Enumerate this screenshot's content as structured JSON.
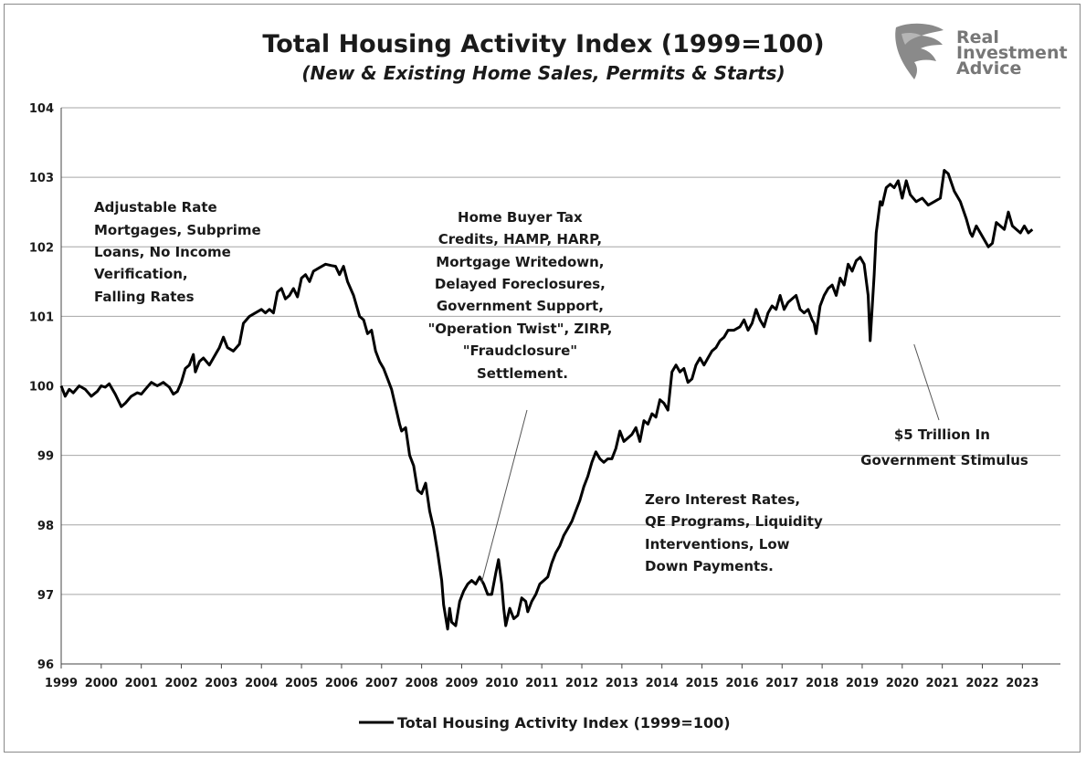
{
  "chart_data": {
    "type": "line",
    "title": "Total Housing Activity Index (1999=100)",
    "subtitle": "(New & Existing Home Sales, Permits & Starts)",
    "xlabel": "",
    "ylabel": "",
    "xlim": [
      1999,
      2023.95
    ],
    "ylim": [
      96,
      104
    ],
    "yticks": [
      "96",
      "97",
      "98",
      "99",
      "100",
      "101",
      "102",
      "103",
      "104"
    ],
    "xticks": [
      "1999",
      "2000",
      "2001",
      "2002",
      "2003",
      "2004",
      "2005",
      "2006",
      "2007",
      "2008",
      "2009",
      "2010",
      "2011",
      "2012",
      "2013",
      "2014",
      "2015",
      "2016",
      "2017",
      "2018",
      "2019",
      "2020",
      "2021",
      "2022",
      "2023"
    ],
    "grid": "horizontal",
    "legend_position": "bottom",
    "series": [
      {
        "name": "Total Housing Activity Index (1999=100)",
        "color": "#000000",
        "points": [
          [
            1999.0,
            100.0
          ],
          [
            1999.1,
            99.85
          ],
          [
            1999.2,
            99.95
          ],
          [
            1999.3,
            99.9
          ],
          [
            1999.45,
            100.0
          ],
          [
            1999.6,
            99.95
          ],
          [
            1999.75,
            99.85
          ],
          [
            1999.9,
            99.92
          ],
          [
            2000.0,
            100.0
          ],
          [
            2000.1,
            99.98
          ],
          [
            2000.2,
            100.03
          ],
          [
            2000.35,
            99.88
          ],
          [
            2000.5,
            99.7
          ],
          [
            2000.6,
            99.75
          ],
          [
            2000.75,
            99.85
          ],
          [
            2000.9,
            99.9
          ],
          [
            2001.0,
            99.88
          ],
          [
            2001.1,
            99.95
          ],
          [
            2001.25,
            100.05
          ],
          [
            2001.4,
            100.0
          ],
          [
            2001.55,
            100.05
          ],
          [
            2001.7,
            99.98
          ],
          [
            2001.8,
            99.88
          ],
          [
            2001.9,
            99.92
          ],
          [
            2002.0,
            100.05
          ],
          [
            2002.1,
            100.25
          ],
          [
            2002.2,
            100.3
          ],
          [
            2002.3,
            100.45
          ],
          [
            2002.35,
            100.2
          ],
          [
            2002.45,
            100.35
          ],
          [
            2002.55,
            100.4
          ],
          [
            2002.7,
            100.3
          ],
          [
            2002.85,
            100.45
          ],
          [
            2002.95,
            100.55
          ],
          [
            2003.05,
            100.7
          ],
          [
            2003.15,
            100.55
          ],
          [
            2003.3,
            100.5
          ],
          [
            2003.45,
            100.6
          ],
          [
            2003.55,
            100.9
          ],
          [
            2003.7,
            101.0
          ],
          [
            2003.85,
            101.05
          ],
          [
            2004.0,
            101.1
          ],
          [
            2004.1,
            101.05
          ],
          [
            2004.2,
            101.1
          ],
          [
            2004.3,
            101.05
          ],
          [
            2004.4,
            101.35
          ],
          [
            2004.5,
            101.4
          ],
          [
            2004.6,
            101.25
          ],
          [
            2004.7,
            101.3
          ],
          [
            2004.8,
            101.4
          ],
          [
            2004.9,
            101.28
          ],
          [
            2005.0,
            101.55
          ],
          [
            2005.1,
            101.6
          ],
          [
            2005.2,
            101.5
          ],
          [
            2005.3,
            101.65
          ],
          [
            2005.45,
            101.7
          ],
          [
            2005.6,
            101.75
          ],
          [
            2005.75,
            101.73
          ],
          [
            2005.85,
            101.72
          ],
          [
            2005.95,
            101.6
          ],
          [
            2006.05,
            101.72
          ],
          [
            2006.15,
            101.5
          ],
          [
            2006.3,
            101.3
          ],
          [
            2006.45,
            101.0
          ],
          [
            2006.55,
            100.95
          ],
          [
            2006.65,
            100.75
          ],
          [
            2006.75,
            100.8
          ],
          [
            2006.85,
            100.5
          ],
          [
            2006.95,
            100.35
          ],
          [
            2007.05,
            100.25
          ],
          [
            2007.15,
            100.1
          ],
          [
            2007.25,
            99.95
          ],
          [
            2007.35,
            99.7
          ],
          [
            2007.45,
            99.45
          ],
          [
            2007.5,
            99.35
          ],
          [
            2007.6,
            99.4
          ],
          [
            2007.7,
            99.0
          ],
          [
            2007.8,
            98.85
          ],
          [
            2007.9,
            98.5
          ],
          [
            2008.0,
            98.45
          ],
          [
            2008.1,
            98.6
          ],
          [
            2008.2,
            98.2
          ],
          [
            2008.3,
            97.95
          ],
          [
            2008.4,
            97.6
          ],
          [
            2008.5,
            97.2
          ],
          [
            2008.55,
            96.85
          ],
          [
            2008.65,
            96.5
          ],
          [
            2008.7,
            96.8
          ],
          [
            2008.75,
            96.6
          ],
          [
            2008.85,
            96.55
          ],
          [
            2008.95,
            96.9
          ],
          [
            2009.05,
            97.05
          ],
          [
            2009.15,
            97.15
          ],
          [
            2009.25,
            97.2
          ],
          [
            2009.35,
            97.15
          ],
          [
            2009.45,
            97.25
          ],
          [
            2009.55,
            97.15
          ],
          [
            2009.65,
            97.0
          ],
          [
            2009.75,
            97.0
          ],
          [
            2009.85,
            97.3
          ],
          [
            2009.92,
            97.5
          ],
          [
            2010.0,
            97.15
          ],
          [
            2010.05,
            96.8
          ],
          [
            2010.1,
            96.55
          ],
          [
            2010.2,
            96.8
          ],
          [
            2010.3,
            96.65
          ],
          [
            2010.4,
            96.7
          ],
          [
            2010.5,
            96.95
          ],
          [
            2010.6,
            96.9
          ],
          [
            2010.65,
            96.75
          ],
          [
            2010.75,
            96.9
          ],
          [
            2010.85,
            97.0
          ],
          [
            2010.95,
            97.15
          ],
          [
            2011.05,
            97.2
          ],
          [
            2011.15,
            97.25
          ],
          [
            2011.25,
            97.45
          ],
          [
            2011.35,
            97.6
          ],
          [
            2011.45,
            97.7
          ],
          [
            2011.55,
            97.85
          ],
          [
            2011.65,
            97.95
          ],
          [
            2011.75,
            98.05
          ],
          [
            2011.85,
            98.2
          ],
          [
            2011.95,
            98.35
          ],
          [
            2012.05,
            98.55
          ],
          [
            2012.15,
            98.7
          ],
          [
            2012.25,
            98.9
          ],
          [
            2012.35,
            99.05
          ],
          [
            2012.45,
            98.95
          ],
          [
            2012.55,
            98.9
          ],
          [
            2012.65,
            98.95
          ],
          [
            2012.75,
            98.95
          ],
          [
            2012.85,
            99.1
          ],
          [
            2012.95,
            99.35
          ],
          [
            2013.05,
            99.2
          ],
          [
            2013.15,
            99.25
          ],
          [
            2013.25,
            99.3
          ],
          [
            2013.35,
            99.4
          ],
          [
            2013.45,
            99.2
          ],
          [
            2013.55,
            99.5
          ],
          [
            2013.65,
            99.45
          ],
          [
            2013.75,
            99.6
          ],
          [
            2013.85,
            99.55
          ],
          [
            2013.95,
            99.8
          ],
          [
            2014.05,
            99.75
          ],
          [
            2014.15,
            99.65
          ],
          [
            2014.25,
            100.2
          ],
          [
            2014.35,
            100.3
          ],
          [
            2014.45,
            100.2
          ],
          [
            2014.55,
            100.25
          ],
          [
            2014.65,
            100.05
          ],
          [
            2014.75,
            100.1
          ],
          [
            2014.85,
            100.3
          ],
          [
            2014.95,
            100.4
          ],
          [
            2015.05,
            100.3
          ],
          [
            2015.15,
            100.4
          ],
          [
            2015.25,
            100.5
          ],
          [
            2015.35,
            100.55
          ],
          [
            2015.45,
            100.65
          ],
          [
            2015.55,
            100.7
          ],
          [
            2015.65,
            100.8
          ],
          [
            2015.8,
            100.8
          ],
          [
            2015.95,
            100.85
          ],
          [
            2016.05,
            100.95
          ],
          [
            2016.15,
            100.8
          ],
          [
            2016.25,
            100.9
          ],
          [
            2016.35,
            101.1
          ],
          [
            2016.45,
            100.95
          ],
          [
            2016.55,
            100.85
          ],
          [
            2016.65,
            101.05
          ],
          [
            2016.75,
            101.15
          ],
          [
            2016.85,
            101.1
          ],
          [
            2016.95,
            101.3
          ],
          [
            2017.05,
            101.1
          ],
          [
            2017.15,
            101.2
          ],
          [
            2017.25,
            101.25
          ],
          [
            2017.35,
            101.3
          ],
          [
            2017.45,
            101.1
          ],
          [
            2017.55,
            101.05
          ],
          [
            2017.65,
            101.1
          ],
          [
            2017.75,
            100.95
          ],
          [
            2017.8,
            100.9
          ],
          [
            2017.85,
            100.75
          ],
          [
            2017.95,
            101.15
          ],
          [
            2018.05,
            101.3
          ],
          [
            2018.15,
            101.4
          ],
          [
            2018.25,
            101.45
          ],
          [
            2018.35,
            101.3
          ],
          [
            2018.45,
            101.55
          ],
          [
            2018.55,
            101.45
          ],
          [
            2018.65,
            101.75
          ],
          [
            2018.75,
            101.65
          ],
          [
            2018.85,
            101.8
          ],
          [
            2018.95,
            101.85
          ],
          [
            2019.05,
            101.75
          ],
          [
            2019.15,
            101.3
          ],
          [
            2019.2,
            100.65
          ],
          [
            2019.3,
            101.6
          ],
          [
            2019.35,
            102.2
          ],
          [
            2019.45,
            102.65
          ],
          [
            2019.5,
            102.6
          ],
          [
            2019.6,
            102.85
          ],
          [
            2019.7,
            102.9
          ],
          [
            2019.8,
            102.85
          ],
          [
            2019.9,
            102.95
          ],
          [
            2020.0,
            102.7
          ],
          [
            2020.1,
            102.95
          ],
          [
            2020.2,
            102.75
          ],
          [
            2020.35,
            102.65
          ],
          [
            2020.5,
            102.7
          ],
          [
            2020.65,
            102.6
          ],
          [
            2020.8,
            102.65
          ],
          [
            2020.95,
            102.7
          ],
          [
            2021.05,
            103.1
          ],
          [
            2021.15,
            103.05
          ],
          [
            2021.3,
            102.8
          ],
          [
            2021.45,
            102.65
          ],
          [
            2021.6,
            102.4
          ],
          [
            2021.7,
            102.2
          ],
          [
            2021.75,
            102.15
          ],
          [
            2021.85,
            102.3
          ],
          [
            2021.95,
            102.2
          ],
          [
            2022.05,
            102.1
          ],
          [
            2022.15,
            102.0
          ],
          [
            2022.25,
            102.05
          ],
          [
            2022.35,
            102.35
          ],
          [
            2022.45,
            102.3
          ],
          [
            2022.55,
            102.25
          ],
          [
            2022.65,
            102.5
          ],
          [
            2022.75,
            102.3
          ],
          [
            2022.85,
            102.25
          ],
          [
            2022.95,
            102.2
          ],
          [
            2023.05,
            102.3
          ],
          [
            2023.15,
            102.2
          ],
          [
            2023.25,
            102.25
          ]
        ]
      }
    ],
    "annotations": [
      {
        "id": "pre-crisis",
        "lines": [
          "Adjustable Rate",
          "Mortgages, Subprime",
          "Loans, No Income",
          "Verification,",
          "Falling Rates"
        ]
      },
      {
        "id": "crisis-policy",
        "lines": [
          "Home Buyer Tax",
          "Credits, HAMP, HARP,",
          "Mortgage Writedown,",
          "Delayed Foreclosures,",
          "Government Support,",
          "\"Operation Twist\", ZIRP,",
          "\"Fraudclosure\"",
          "Settlement."
        ],
        "pointer_to": [
          2009.5,
          97.2
        ]
      },
      {
        "id": "recovery",
        "lines": [
          "Zero Interest Rates,",
          "QE Programs, Liquidity",
          "Interventions, Low",
          "Down Payments."
        ]
      },
      {
        "id": "stimulus",
        "lines": [
          "$5 Trillion In",
          "Government Stimulus"
        ],
        "pointer_to": [
          2020.25,
          100.65
        ]
      }
    ]
  },
  "logo": {
    "lines": [
      "Real",
      "Investment",
      "Advice"
    ],
    "color": "#777777"
  },
  "legend": {
    "label": "Total Housing Activity Index (1999=100)"
  }
}
